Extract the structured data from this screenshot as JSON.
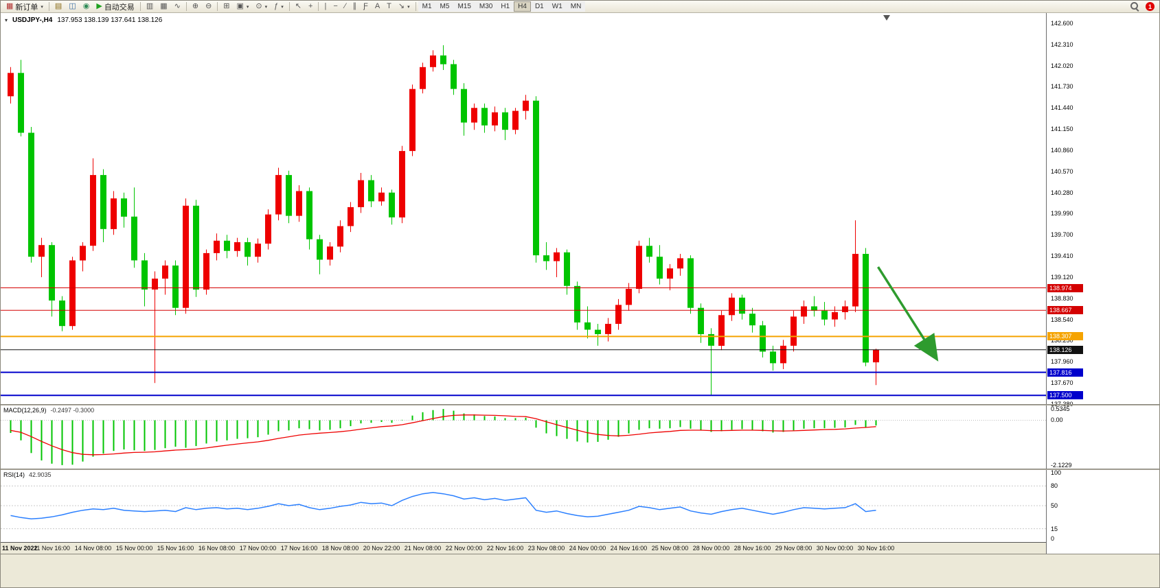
{
  "toolbar": {
    "new_order_label": "新订单",
    "autotrade_label": "自动交易",
    "notification_badge": "1",
    "timeframes": [
      "M1",
      "M5",
      "M15",
      "M30",
      "H1",
      "H4",
      "D1",
      "W1",
      "MN"
    ],
    "active_timeframe": "H4",
    "icons": [
      {
        "type": "btn",
        "name": "new-order-button",
        "glyph": "▦",
        "glyph_color": "#b03030",
        "label_key": "new_order_label",
        "caret": true
      },
      {
        "type": "sep"
      },
      {
        "type": "icon",
        "name": "market-watch-icon",
        "glyph": "▤",
        "color": "#8a6d1a"
      },
      {
        "type": "icon",
        "name": "data-window-icon",
        "glyph": "◫",
        "color": "#3a6ea5"
      },
      {
        "type": "icon",
        "name": "navigator-icon",
        "glyph": "◉",
        "color": "#2e8b57"
      },
      {
        "type": "btn",
        "name": "autotrade-button",
        "glyph": "▶",
        "glyph_color": "#1fa11f",
        "label_key": "autotrade_label"
      },
      {
        "type": "sep"
      },
      {
        "type": "icon",
        "name": "bar-chart-icon",
        "glyph": "▥"
      },
      {
        "type": "icon",
        "name": "candlestick-chart-icon",
        "glyph": "▦"
      },
      {
        "type": "icon",
        "name": "line-chart-icon",
        "glyph": "∿"
      },
      {
        "type": "sep"
      },
      {
        "type": "icon",
        "name": "zoom-in-icon",
        "glyph": "⊕"
      },
      {
        "type": "icon",
        "name": "zoom-out-icon",
        "glyph": "⊖"
      },
      {
        "type": "sep"
      },
      {
        "type": "icon",
        "name": "tile-windows-icon",
        "glyph": "⊞"
      },
      {
        "type": "icon",
        "name": "new-chart-icon",
        "glyph": "▣",
        "caret": true
      },
      {
        "type": "icon",
        "name": "profiles-icon",
        "glyph": "⊙",
        "caret": true
      },
      {
        "type": "icon",
        "name": "indicators-icon",
        "glyph": "ƒ",
        "caret": true
      },
      {
        "type": "sep"
      },
      {
        "type": "icon",
        "name": "cursor-icon",
        "glyph": "↖"
      },
      {
        "type": "icon",
        "name": "crosshair-icon",
        "glyph": "+"
      },
      {
        "type": "sep"
      },
      {
        "type": "icon",
        "name": "vertical-line-icon",
        "glyph": "|"
      },
      {
        "type": "icon",
        "name": "horizontal-line-icon",
        "glyph": "−"
      },
      {
        "type": "icon",
        "name": "trendline-icon",
        "glyph": "∕"
      },
      {
        "type": "icon",
        "name": "channel-icon",
        "glyph": "∥"
      },
      {
        "type": "icon",
        "name": "fibonacci-icon",
        "glyph": "Ƒ"
      },
      {
        "type": "icon",
        "name": "text-icon",
        "glyph": "A"
      },
      {
        "type": "icon",
        "name": "label-icon",
        "glyph": "T"
      },
      {
        "type": "icon",
        "name": "arrows-icon",
        "glyph": "↘",
        "caret": true
      },
      {
        "type": "sep"
      }
    ]
  },
  "chart": {
    "symbol_period": "USDJPY-,H4",
    "ohlc": "137.953 138.139 137.641 138.126",
    "toggle_glyph": "▾"
  },
  "chart_data": {
    "type": "candlestick",
    "symbol": "USDJPY-",
    "period": "H4",
    "bull_color": "#ee0000",
    "bear_color": "#00c400",
    "current_ohlc": {
      "open": 137.953,
      "high": 138.139,
      "low": 137.641,
      "close": 138.126
    },
    "y_axis": {
      "tick_step": 0.29,
      "labels": [
        "142.600",
        "142.310",
        "142.020",
        "141.730",
        "141.440",
        "141.150",
        "140.860",
        "140.570",
        "140.280",
        "139.990",
        "139.700",
        "139.410",
        "139.120",
        "138.830",
        "138.540",
        "138.250",
        "137.960",
        "137.670",
        "137.380"
      ]
    },
    "x_labels": [
      "11 Nov 2022",
      "11 Nov 16:00",
      "14 Nov 08:00",
      "15 Nov 00:00",
      "15 Nov 16:00",
      "16 Nov 08:00",
      "17 Nov 00:00",
      "17 Nov 16:00",
      "18 Nov 08:00",
      "20 Nov 22:00",
      "21 Nov 08:00",
      "22 Nov 00:00",
      "22 Nov 16:00",
      "23 Nov 08:00",
      "24 Nov 00:00",
      "24 Nov 16:00",
      "25 Nov 08:00",
      "28 Nov 00:00",
      "28 Nov 16:00",
      "29 Nov 08:00",
      "30 Nov 00:00",
      "30 Nov 16:00"
    ],
    "candles_per_label": 4,
    "candles": [
      [
        141.6,
        142.0,
        141.5,
        141.92
      ],
      [
        141.92,
        142.1,
        141.05,
        141.1
      ],
      [
        141.1,
        141.18,
        139.32,
        139.4
      ],
      [
        139.4,
        139.66,
        139.12,
        139.56
      ],
      [
        139.56,
        139.6,
        138.58,
        138.8
      ],
      [
        138.8,
        138.86,
        138.38,
        138.45
      ],
      [
        138.45,
        139.4,
        138.4,
        139.35
      ],
      [
        139.35,
        139.6,
        139.2,
        139.55
      ],
      [
        139.55,
        140.75,
        139.48,
        140.52
      ],
      [
        140.52,
        140.6,
        139.6,
        139.78
      ],
      [
        139.78,
        140.3,
        139.7,
        140.2
      ],
      [
        140.2,
        140.28,
        139.8,
        139.95
      ],
      [
        139.95,
        140.35,
        139.25,
        139.35
      ],
      [
        139.35,
        139.45,
        138.72,
        138.95
      ],
      [
        138.95,
        139.2,
        137.67,
        139.1
      ],
      [
        139.1,
        139.35,
        138.88,
        139.28
      ],
      [
        139.28,
        139.35,
        138.6,
        138.7
      ],
      [
        138.7,
        140.2,
        138.62,
        140.1
      ],
      [
        140.1,
        140.18,
        138.85,
        138.95
      ],
      [
        138.95,
        139.5,
        138.88,
        139.45
      ],
      [
        139.45,
        139.72,
        139.35,
        139.62
      ],
      [
        139.62,
        139.7,
        139.38,
        139.48
      ],
      [
        139.48,
        139.66,
        139.4,
        139.6
      ],
      [
        139.6,
        139.66,
        139.28,
        139.4
      ],
      [
        139.4,
        139.65,
        139.32,
        139.58
      ],
      [
        139.58,
        140.05,
        139.5,
        139.98
      ],
      [
        139.98,
        140.62,
        139.9,
        140.52
      ],
      [
        140.52,
        140.58,
        139.86,
        139.96
      ],
      [
        139.96,
        140.38,
        139.88,
        140.3
      ],
      [
        140.3,
        140.35,
        139.5,
        139.64
      ],
      [
        139.64,
        139.7,
        139.16,
        139.36
      ],
      [
        139.36,
        139.6,
        139.28,
        139.54
      ],
      [
        139.54,
        139.9,
        139.46,
        139.82
      ],
      [
        139.82,
        140.15,
        139.74,
        140.08
      ],
      [
        140.08,
        140.55,
        140.0,
        140.45
      ],
      [
        140.45,
        140.52,
        140.08,
        140.16
      ],
      [
        140.16,
        140.35,
        140.1,
        140.28
      ],
      [
        140.28,
        140.32,
        139.84,
        139.94
      ],
      [
        139.94,
        140.92,
        139.86,
        140.85
      ],
      [
        140.85,
        141.76,
        140.78,
        141.7
      ],
      [
        141.7,
        142.06,
        141.64,
        142.0
      ],
      [
        142.0,
        142.23,
        141.94,
        142.16
      ],
      [
        142.16,
        142.3,
        141.96,
        142.04
      ],
      [
        142.04,
        142.1,
        141.62,
        141.7
      ],
      [
        141.7,
        141.78,
        141.06,
        141.24
      ],
      [
        141.24,
        141.5,
        141.14,
        141.44
      ],
      [
        141.44,
        141.5,
        141.1,
        141.2
      ],
      [
        141.2,
        141.46,
        141.12,
        141.38
      ],
      [
        141.38,
        141.44,
        141.0,
        141.14
      ],
      [
        141.14,
        141.44,
        141.08,
        141.4
      ],
      [
        141.4,
        141.62,
        141.28,
        141.54
      ],
      [
        141.54,
        141.6,
        139.32,
        139.42
      ],
      [
        139.42,
        139.6,
        139.22,
        139.34
      ],
      [
        139.34,
        139.52,
        139.12,
        139.46
      ],
      [
        139.46,
        139.5,
        138.88,
        139.0
      ],
      [
        139.0,
        139.06,
        138.4,
        138.5
      ],
      [
        138.5,
        138.72,
        138.28,
        138.4
      ],
      [
        138.4,
        138.48,
        138.18,
        138.34
      ],
      [
        138.34,
        138.56,
        138.24,
        138.48
      ],
      [
        138.48,
        138.82,
        138.4,
        138.74
      ],
      [
        138.74,
        139.04,
        138.66,
        138.96
      ],
      [
        138.96,
        139.62,
        138.9,
        139.55
      ],
      [
        139.55,
        139.66,
        139.32,
        139.4
      ],
      [
        139.4,
        139.56,
        139.02,
        139.1
      ],
      [
        139.1,
        139.3,
        138.94,
        139.24
      ],
      [
        139.24,
        139.44,
        139.14,
        139.38
      ],
      [
        139.38,
        139.42,
        138.62,
        138.7
      ],
      [
        138.7,
        138.76,
        138.22,
        138.34
      ],
      [
        138.34,
        138.42,
        137.5,
        138.18
      ],
      [
        138.18,
        138.66,
        138.12,
        138.6
      ],
      [
        138.6,
        138.9,
        138.52,
        138.84
      ],
      [
        138.84,
        138.88,
        138.54,
        138.62
      ],
      [
        138.62,
        138.7,
        138.36,
        138.46
      ],
      [
        138.46,
        138.52,
        138.02,
        138.1
      ],
      [
        138.1,
        138.18,
        137.84,
        137.94
      ],
      [
        137.94,
        138.26,
        137.86,
        138.18
      ],
      [
        138.18,
        138.66,
        138.1,
        138.58
      ],
      [
        138.58,
        138.8,
        138.48,
        138.72
      ],
      [
        138.72,
        138.86,
        138.58,
        138.66
      ],
      [
        138.66,
        138.78,
        138.46,
        138.54
      ],
      [
        138.54,
        138.72,
        138.44,
        138.64
      ],
      [
        138.64,
        138.8,
        138.54,
        138.72
      ],
      [
        138.72,
        139.9,
        138.64,
        139.44
      ],
      [
        139.44,
        139.52,
        137.9,
        137.95
      ],
      [
        137.953,
        138.139,
        137.641,
        138.126
      ]
    ],
    "price_lines": [
      {
        "price": 138.974,
        "color": "#d40000",
        "width": 1,
        "label": "138.974"
      },
      {
        "price": 138.667,
        "color": "#d40000",
        "width": 1,
        "label": "138.667"
      },
      {
        "price": 138.307,
        "color": "#f5a300",
        "width": 2,
        "label": "138.307"
      },
      {
        "price": 138.126,
        "color": "#111111",
        "width": 1,
        "label": "138.126",
        "role": "bid"
      },
      {
        "price": 137.816,
        "color": "#0000cc",
        "width": 2,
        "label": "137.816"
      },
      {
        "price": 137.5,
        "color": "#0000cc",
        "width": 2,
        "label": "137.500"
      }
    ],
    "trend_arrow": {
      "from_index": 84.2,
      "from_price": 139.26,
      "to_index": 89.8,
      "to_price": 138.02,
      "color": "#2e9b2e",
      "width": 3.5
    },
    "macd": {
      "label": "MACD(12,26,9)",
      "values_text": "-0.2497 -0.3000",
      "max": 0.5345,
      "min": -2.1229,
      "hist_color": "#00c400",
      "signal_color": "#ee0000",
      "axis_labels": [
        {
          "text": "0.5345",
          "value": 0.5345
        },
        {
          "text": "0.00",
          "value": 0
        },
        {
          "text": "-2.1229",
          "value": -2.1229
        }
      ],
      "histogram": [
        -0.6,
        -0.95,
        -1.55,
        -1.9,
        -2.05,
        -2.12,
        -2.1,
        -1.95,
        -1.72,
        -1.58,
        -1.45,
        -1.38,
        -1.42,
        -1.45,
        -1.4,
        -1.32,
        -1.25,
        -1.3,
        -1.22,
        -1.1,
        -1.0,
        -0.95,
        -0.88,
        -0.85,
        -0.8,
        -0.68,
        -0.52,
        -0.48,
        -0.38,
        -0.42,
        -0.48,
        -0.45,
        -0.38,
        -0.28,
        -0.15,
        -0.12,
        -0.08,
        -0.12,
        0.02,
        0.22,
        0.38,
        0.48,
        0.53,
        0.45,
        0.32,
        0.28,
        0.2,
        0.18,
        0.1,
        0.1,
        0.12,
        -0.35,
        -0.62,
        -0.75,
        -0.88,
        -1.0,
        -1.05,
        -1.02,
        -0.92,
        -0.78,
        -0.62,
        -0.45,
        -0.38,
        -0.4,
        -0.38,
        -0.32,
        -0.4,
        -0.48,
        -0.55,
        -0.52,
        -0.45,
        -0.42,
        -0.45,
        -0.52,
        -0.58,
        -0.55,
        -0.48,
        -0.4,
        -0.38,
        -0.38,
        -0.36,
        -0.34,
        -0.22,
        -0.35,
        -0.25
      ],
      "signal": [
        -0.48,
        -0.57,
        -0.77,
        -1.0,
        -1.21,
        -1.39,
        -1.53,
        -1.61,
        -1.63,
        -1.62,
        -1.59,
        -1.55,
        -1.52,
        -1.51,
        -1.49,
        -1.45,
        -1.41,
        -1.39,
        -1.36,
        -1.31,
        -1.24,
        -1.18,
        -1.12,
        -1.07,
        -1.02,
        -0.95,
        -0.86,
        -0.78,
        -0.7,
        -0.65,
        -0.61,
        -0.58,
        -0.54,
        -0.49,
        -0.42,
        -0.36,
        -0.3,
        -0.27,
        -0.21,
        -0.12,
        -0.02,
        0.08,
        0.17,
        0.23,
        0.25,
        0.25,
        0.24,
        0.23,
        0.21,
        0.18,
        0.17,
        0.07,
        -0.07,
        -0.21,
        -0.34,
        -0.47,
        -0.59,
        -0.67,
        -0.72,
        -0.74,
        -0.71,
        -0.66,
        -0.6,
        -0.56,
        -0.53,
        -0.48,
        -0.47,
        -0.47,
        -0.49,
        -0.49,
        -0.48,
        -0.47,
        -0.47,
        -0.48,
        -0.5,
        -0.51,
        -0.5,
        -0.48,
        -0.46,
        -0.44,
        -0.43,
        -0.41,
        -0.37,
        -0.34,
        -0.3
      ]
    },
    "rsi": {
      "label": "RSI(14)",
      "value_text": "42.9035",
      "color": "#2a7fff",
      "range": [
        0,
        100
      ],
      "levels": [
        80,
        50,
        15
      ],
      "axis_labels": [
        {
          "text": "100",
          "value": 100
        },
        {
          "text": "80",
          "value": 80
        },
        {
          "text": "50",
          "value": 50
        },
        {
          "text": "15",
          "value": 15
        },
        {
          "text": "0",
          "value": 0
        }
      ],
      "values": [
        35,
        32,
        30,
        31,
        33,
        36,
        40,
        43,
        45,
        44,
        46,
        43,
        42,
        41,
        42,
        43,
        41,
        47,
        44,
        46,
        47,
        45,
        46,
        44,
        46,
        49,
        53,
        50,
        52,
        47,
        44,
        46,
        49,
        51,
        55,
        53,
        54,
        50,
        58,
        64,
        68,
        70,
        68,
        65,
        60,
        62,
        59,
        61,
        58,
        60,
        62,
        43,
        40,
        42,
        38,
        35,
        33,
        34,
        37,
        40,
        43,
        49,
        47,
        44,
        46,
        48,
        42,
        39,
        37,
        41,
        44,
        46,
        43,
        40,
        37,
        40,
        44,
        47,
        46,
        45,
        46,
        47,
        53,
        41,
        43
      ]
    }
  }
}
